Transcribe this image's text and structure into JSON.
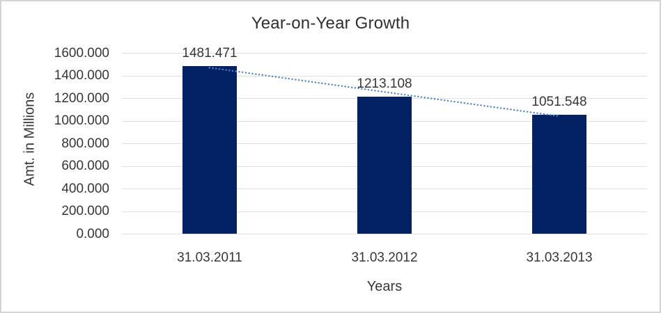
{
  "chart_data": {
    "type": "bar",
    "title": "Year-on-Year Growth",
    "xlabel": "Years",
    "ylabel": "Amt. in Millions",
    "categories": [
      "31.03.2011",
      "31.03.2012",
      "31.03.2013"
    ],
    "values": [
      1481.471,
      1213.108,
      1051.548
    ],
    "data_labels": [
      "1481.471",
      "1213.108",
      "1051.548"
    ],
    "ylim": [
      0,
      1600
    ],
    "ytick_step": 200,
    "ytick_labels": [
      "0.000",
      "200.000",
      "400.000",
      "600.000",
      "800.000",
      "1000.000",
      "1200.000",
      "1400.000",
      "1600.000"
    ],
    "grid": true,
    "legend": "none",
    "trendline": {
      "type": "linear",
      "style": "dotted",
      "start_value": 1481.471,
      "end_value": 1051.548
    },
    "colors": {
      "bar": "#042263",
      "trendline": "#4e86c6",
      "gridline": "#e0e0e0",
      "text": "#363636",
      "title_text": "#2f2f2f",
      "background": "#ffffff",
      "border": "#d4d4d4"
    }
  }
}
